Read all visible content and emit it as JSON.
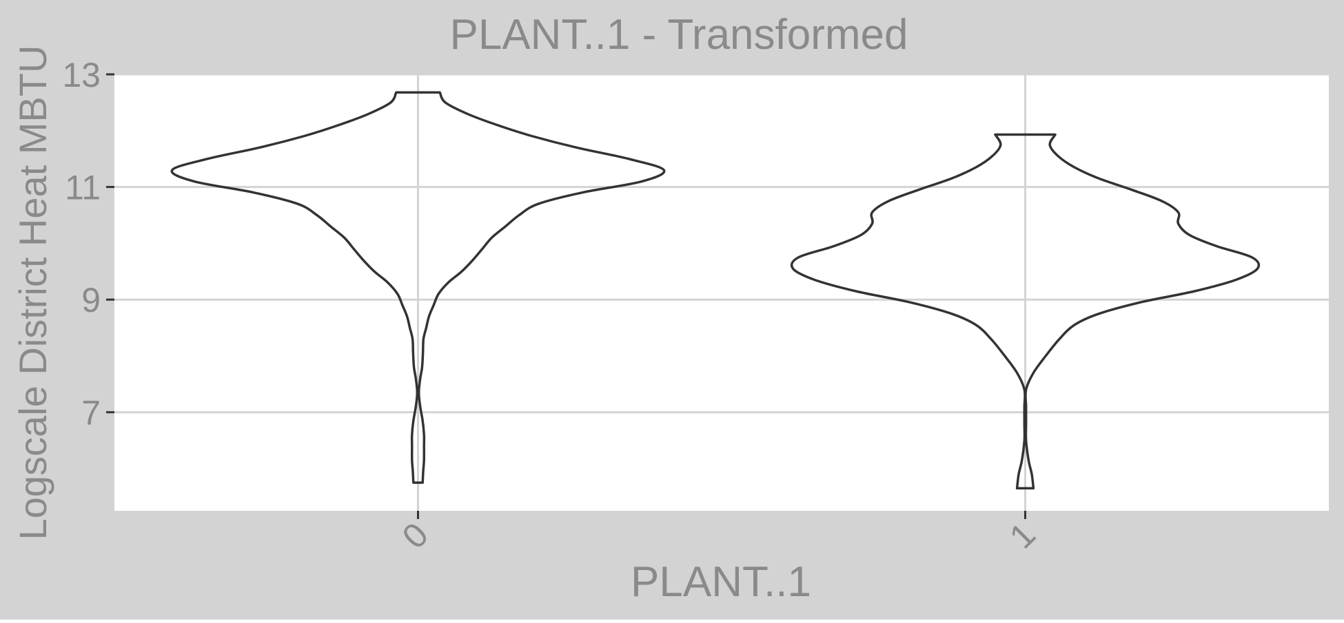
{
  "colors": {
    "background": "#d3d3d3",
    "panel": "#ffffff",
    "grid": "#d3d3d3",
    "text": "#8a8a8a",
    "violin_stroke": "#333333"
  },
  "chart_data": {
    "type": "violin",
    "title": "PLANT..1 - Transformed",
    "xlabel": "PLANT..1",
    "ylabel": "Logscale District Heat MBTU",
    "categories": [
      "0",
      "1"
    ],
    "y_ticks": [
      7,
      9,
      11,
      13
    ],
    "ylim": [
      5.25,
      13.0
    ],
    "grid": {
      "major_y": true,
      "major_x": true
    },
    "legend": "none",
    "series": [
      {
        "category": "0",
        "y_min": 5.75,
        "y_max": 12.68,
        "density_profile": [
          {
            "y": 5.75,
            "w": 0.017
          },
          {
            "y": 5.95,
            "w": 0.019
          },
          {
            "y": 6.15,
            "w": 0.022
          },
          {
            "y": 6.4,
            "w": 0.022
          },
          {
            "y": 6.6,
            "w": 0.022
          },
          {
            "y": 6.85,
            "w": 0.017
          },
          {
            "y": 7.1,
            "w": 0.008
          },
          {
            "y": 7.35,
            "w": 0.003
          },
          {
            "y": 7.6,
            "w": 0.008
          },
          {
            "y": 7.8,
            "w": 0.015
          },
          {
            "y": 8.05,
            "w": 0.018
          },
          {
            "y": 8.3,
            "w": 0.02
          },
          {
            "y": 8.5,
            "w": 0.03
          },
          {
            "y": 8.7,
            "w": 0.04
          },
          {
            "y": 8.9,
            "w": 0.057
          },
          {
            "y": 9.1,
            "w": 0.075
          },
          {
            "y": 9.3,
            "w": 0.11
          },
          {
            "y": 9.5,
            "w": 0.16
          },
          {
            "y": 9.7,
            "w": 0.2
          },
          {
            "y": 9.9,
            "w": 0.235
          },
          {
            "y": 10.1,
            "w": 0.27
          },
          {
            "y": 10.3,
            "w": 0.32
          },
          {
            "y": 10.5,
            "w": 0.37
          },
          {
            "y": 10.7,
            "w": 0.44
          },
          {
            "y": 10.9,
            "w": 0.6
          },
          {
            "y": 11.1,
            "w": 0.82
          },
          {
            "y": 11.3,
            "w": 0.9
          },
          {
            "y": 11.5,
            "w": 0.77
          },
          {
            "y": 11.7,
            "w": 0.58
          },
          {
            "y": 11.9,
            "w": 0.42
          },
          {
            "y": 12.1,
            "w": 0.29
          },
          {
            "y": 12.3,
            "w": 0.18
          },
          {
            "y": 12.5,
            "w": 0.1
          },
          {
            "y": 12.68,
            "w": 0.08
          }
        ]
      },
      {
        "category": "1",
        "y_min": 5.65,
        "y_max": 11.93,
        "density_profile": [
          {
            "y": 5.65,
            "w": 0.03
          },
          {
            "y": 5.9,
            "w": 0.024
          },
          {
            "y": 6.15,
            "w": 0.012
          },
          {
            "y": 6.5,
            "w": 0.003
          },
          {
            "y": 6.8,
            "w": 0.003
          },
          {
            "y": 7.1,
            "w": 0.003
          },
          {
            "y": 7.4,
            "w": 0.003
          },
          {
            "y": 7.7,
            "w": 0.03
          },
          {
            "y": 8.0,
            "w": 0.075
          },
          {
            "y": 8.3,
            "w": 0.125
          },
          {
            "y": 8.55,
            "w": 0.18
          },
          {
            "y": 8.75,
            "w": 0.27
          },
          {
            "y": 8.95,
            "w": 0.42
          },
          {
            "y": 9.15,
            "w": 0.62
          },
          {
            "y": 9.35,
            "w": 0.77
          },
          {
            "y": 9.55,
            "w": 0.85
          },
          {
            "y": 9.75,
            "w": 0.83
          },
          {
            "y": 9.95,
            "w": 0.7
          },
          {
            "y": 10.15,
            "w": 0.6
          },
          {
            "y": 10.35,
            "w": 0.56
          },
          {
            "y": 10.55,
            "w": 0.56
          },
          {
            "y": 10.75,
            "w": 0.5
          },
          {
            "y": 10.95,
            "w": 0.39
          },
          {
            "y": 11.15,
            "w": 0.27
          },
          {
            "y": 11.35,
            "w": 0.18
          },
          {
            "y": 11.55,
            "w": 0.12
          },
          {
            "y": 11.75,
            "w": 0.09
          },
          {
            "y": 11.93,
            "w": 0.11
          }
        ]
      }
    ]
  }
}
